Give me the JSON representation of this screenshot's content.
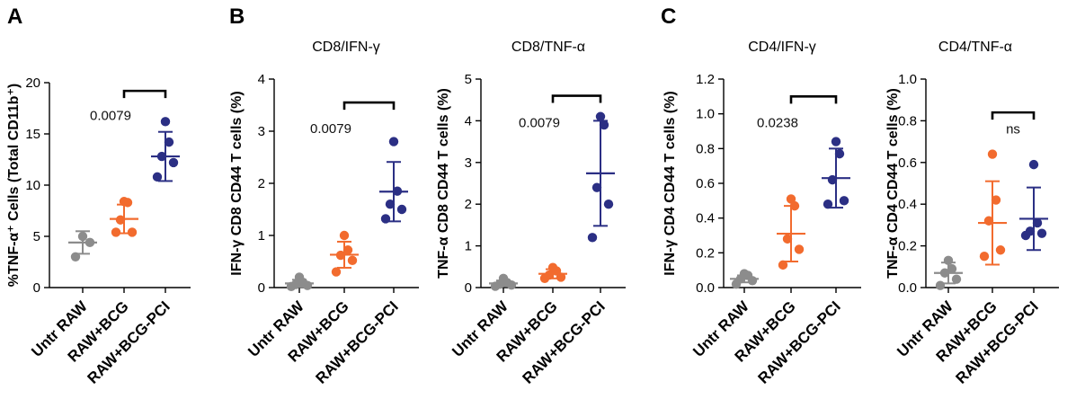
{
  "panels": [
    {
      "label": "A"
    },
    {
      "label": "B"
    },
    {
      "label": "C"
    }
  ],
  "colors": {
    "untr": "#8c8c8c",
    "bcg": "#f26b2e",
    "pci": "#2b2f84"
  },
  "chart_data": [
    {
      "type": "scatter",
      "title": "",
      "panel": "A",
      "ylabel": "%TNF-α⁺ Cells (Total CD11b⁺)",
      "ylim": [
        0,
        20
      ],
      "yticks": [
        0,
        5,
        10,
        15,
        20
      ],
      "ytick_labels": [
        "0",
        "5",
        "10",
        "15",
        "20"
      ],
      "categories": [
        "Untr RAW",
        "RAW+BCG",
        "RAW+BCG-PCI"
      ],
      "series": [
        {
          "name": "Untr RAW",
          "color_key": "untr",
          "points": [
            3.0,
            4.4,
            5.0
          ],
          "mean": 4.4,
          "sd": 1.1
        },
        {
          "name": "RAW+BCG",
          "color_key": "bcg",
          "points": [
            5.4,
            5.4,
            6.6,
            8.3,
            8.4
          ],
          "mean": 6.7,
          "sd": 1.4
        },
        {
          "name": "RAW+BCG-PCI",
          "color_key": "pci",
          "points": [
            10.8,
            12.2,
            12.8,
            14.2,
            16.2
          ],
          "mean": 12.8,
          "sd": 2.4
        }
      ],
      "comparison": {
        "from": 1,
        "to": 2,
        "y": 19.2,
        "label": "0.0079",
        "label_y": 16.8
      }
    },
    {
      "type": "scatter",
      "title": "CD8/IFN-γ",
      "panel": "B",
      "ylabel": "IFN-γ CD8 CD44 T cells (%)",
      "ylim": [
        0,
        4
      ],
      "yticks": [
        0,
        1,
        2,
        3,
        4
      ],
      "ytick_labels": [
        "0",
        "1",
        "2",
        "3",
        "4"
      ],
      "categories": [
        "Untr RAW",
        "RAW+BCG",
        "RAW+BCG-PCI"
      ],
      "series": [
        {
          "name": "Untr RAW",
          "color_key": "untr",
          "points": [
            0.02,
            0.04,
            0.06,
            0.1,
            0.2
          ],
          "mean": 0.08,
          "sd": 0.07
        },
        {
          "name": "RAW+BCG",
          "color_key": "bcg",
          "points": [
            0.3,
            0.52,
            0.62,
            0.72,
            1.0
          ],
          "mean": 0.63,
          "sd": 0.25
        },
        {
          "name": "RAW+BCG-PCI",
          "color_key": "pci",
          "points": [
            1.32,
            1.5,
            1.6,
            1.85,
            2.8
          ],
          "mean": 1.84,
          "sd": 0.57
        }
      ],
      "comparison": {
        "from": 1,
        "to": 2,
        "y": 3.55,
        "label": "0.0079",
        "label_y": 3.05
      }
    },
    {
      "type": "scatter",
      "title": "CD8/TNF-α",
      "panel": "",
      "ylabel": "TNF-α CD8 CD44 T cells (%)",
      "ylim": [
        0,
        5
      ],
      "yticks": [
        0,
        1,
        2,
        3,
        4,
        5
      ],
      "ytick_labels": [
        "0",
        "1",
        "2",
        "3",
        "4",
        "5"
      ],
      "categories": [
        "Untr RAW",
        "RAW+BCG",
        "RAW+BCG-PCI"
      ],
      "series": [
        {
          "name": "Untr RAW",
          "color_key": "untr",
          "points": [
            0.03,
            0.06,
            0.08,
            0.12,
            0.22
          ],
          "mean": 0.1,
          "sd": 0.07
        },
        {
          "name": "RAW+BCG",
          "color_key": "bcg",
          "points": [
            0.22,
            0.25,
            0.3,
            0.4,
            0.48
          ],
          "mean": 0.33,
          "sd": 0.11
        },
        {
          "name": "RAW+BCG-PCI",
          "color_key": "pci",
          "points": [
            1.2,
            2.0,
            2.4,
            3.9,
            4.1
          ],
          "mean": 2.74,
          "sd": 1.26
        }
      ],
      "comparison": {
        "from": 1,
        "to": 2,
        "y": 4.6,
        "label": "0.0079",
        "label_y": 3.95
      }
    },
    {
      "type": "scatter",
      "title": "CD4/IFN-γ",
      "panel": "C",
      "ylabel": "IFN-γ CD4 CD44 T cells (%)",
      "ylim": [
        0,
        1.2
      ],
      "yticks": [
        0,
        0.2,
        0.4,
        0.6,
        0.8,
        1.0,
        1.2
      ],
      "ytick_labels": [
        "0.0",
        "0.2",
        "0.4",
        "0.6",
        "0.8",
        "1.0",
        "1.2"
      ],
      "categories": [
        "Untr RAW",
        "RAW+BCG",
        "RAW+BCG-PCI"
      ],
      "series": [
        {
          "name": "Untr RAW",
          "color_key": "untr",
          "points": [
            0.02,
            0.04,
            0.05,
            0.07,
            0.08
          ],
          "mean": 0.05,
          "sd": 0.02
        },
        {
          "name": "RAW+BCG",
          "color_key": "bcg",
          "points": [
            0.13,
            0.22,
            0.28,
            0.47,
            0.51
          ],
          "mean": 0.31,
          "sd": 0.16
        },
        {
          "name": "RAW+BCG-PCI",
          "color_key": "pci",
          "points": [
            0.48,
            0.5,
            0.62,
            0.77,
            0.84
          ],
          "mean": 0.63,
          "sd": 0.17
        }
      ],
      "comparison": {
        "from": 1,
        "to": 2,
        "y": 1.1,
        "label": "0.0238",
        "label_y": 0.95
      }
    },
    {
      "type": "scatter",
      "title": "CD4/TNF-α",
      "panel": "",
      "ylabel": "TNF-α CD4 CD44 T cells (%)",
      "ylim": [
        0,
        1.0
      ],
      "yticks": [
        0,
        0.2,
        0.4,
        0.6,
        0.8,
        1.0
      ],
      "ytick_labels": [
        "0.0",
        "0.2",
        "0.4",
        "0.6",
        "0.8",
        "1.0"
      ],
      "categories": [
        "Untr RAW",
        "RAW+BCG",
        "RAW+BCG-PCI"
      ],
      "series": [
        {
          "name": "Untr RAW",
          "color_key": "untr",
          "points": [
            0.01,
            0.04,
            0.07,
            0.09,
            0.13
          ],
          "mean": 0.07,
          "sd": 0.05
        },
        {
          "name": "RAW+BCG",
          "color_key": "bcg",
          "points": [
            0.15,
            0.18,
            0.32,
            0.42,
            0.64
          ],
          "mean": 0.31,
          "sd": 0.2
        },
        {
          "name": "RAW+BCG-PCI",
          "color_key": "pci",
          "points": [
            0.25,
            0.26,
            0.27,
            0.31,
            0.59
          ],
          "mean": 0.33,
          "sd": 0.15
        }
      ],
      "comparison": {
        "from": 1,
        "to": 2,
        "y": 0.84,
        "label": "ns",
        "label_y": 0.76,
        "label_center": true
      }
    }
  ]
}
